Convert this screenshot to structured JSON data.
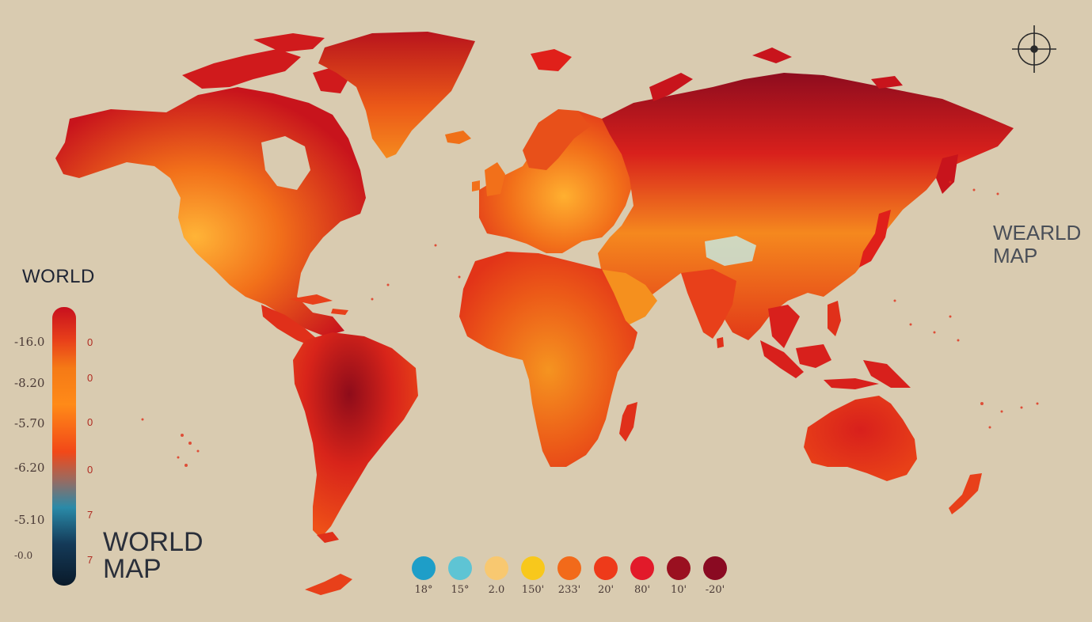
{
  "titles": {
    "left": "WORLD",
    "bottom_line1": "WORLD",
    "bottom_line2": "MAP",
    "right_line1": "WEARLD",
    "right_line2": "MAP"
  },
  "scale_labels_left": [
    "-16.0",
    "-8.20",
    "-5.70",
    "-6.20",
    "-5.10",
    "-0.0"
  ],
  "scale_labels_right": [
    "0",
    "0",
    "0",
    "0",
    "7",
    "7"
  ],
  "scale_colors": [
    "#c8101e",
    "#f06a10",
    "#ff8a18",
    "#ff6a10",
    "#f24818",
    "#7a8a90",
    "#2a8aa8",
    "#123a58",
    "#0a1e30"
  ],
  "swatches": [
    {
      "label": "18°",
      "color": "#1e9ec8"
    },
    {
      "label": "15°",
      "color": "#5ec4d4"
    },
    {
      "label": "2.0",
      "color": "#f8c870"
    },
    {
      "label": "150'",
      "color": "#f8c81c"
    },
    {
      "label": "233'",
      "color": "#f26a1a"
    },
    {
      "label": "20'",
      "color": "#ee3a1a"
    },
    {
      "label": "80'",
      "color": "#e21a2a"
    },
    {
      "label": "10'",
      "color": "#9a1020"
    },
    {
      "label": "-20'",
      "color": "#8a0a22"
    }
  ],
  "palette": {
    "land_dark": "#a0101c",
    "land_red": "#e0201a",
    "land_orange": "#f2701a",
    "land_light": "#ffb030",
    "background": "#d9cbb0"
  },
  "compass_icon": "compass-rose-icon"
}
